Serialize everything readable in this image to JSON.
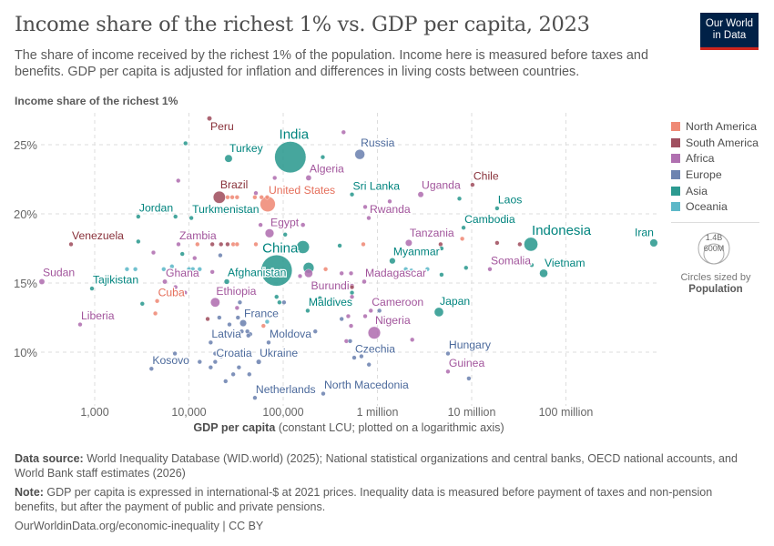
{
  "header": {
    "title": "Income share of the richest 1% vs. GDP per capita, 2023",
    "subtitle": "The share of income received by the richest 1% of the population. Income here is measured before taxes and benefits. GDP per capita is adjusted for inflation and differences in living costs between countries.",
    "logo_line1": "Our World",
    "logo_line2": "in Data"
  },
  "legend": {
    "items": [
      {
        "label": "North America",
        "color": "#EF8A76"
      },
      {
        "label": "South America",
        "color": "#A05060"
      },
      {
        "label": "Africa",
        "color": "#B070B0"
      },
      {
        "label": "Europe",
        "color": "#6D83B0"
      },
      {
        "label": "Asia",
        "color": "#2C9A90"
      },
      {
        "label": "Oceania",
        "color": "#5DB8C8"
      }
    ],
    "size_large": "1.4B",
    "size_small": "600M",
    "size_caption": "Circles sized by",
    "size_variable": "Population"
  },
  "chart_data": {
    "type": "scatter",
    "title": "Income share of the richest 1% vs. GDP per capita, 2023",
    "ylabel": "Income share of the richest 1%",
    "xlabel_bold": "GDP per capita",
    "xlabel_rest": " (constant LCU; plotted on a logarithmic axis)",
    "x_scale": "log",
    "xlim": [
      270,
      900000000
    ],
    "ylim": [
      6,
      27.3
    ],
    "grid": true,
    "legend_position": "right",
    "x_ticks": [
      1000,
      10000,
      100000,
      1000000,
      10000000,
      100000000
    ],
    "x_tick_labels": [
      "1,000",
      "10,000",
      "100,000",
      "1 million",
      "10 million",
      "100 million"
    ],
    "y_ticks": [
      10,
      15,
      20,
      25
    ],
    "y_tick_labels": [
      "10%",
      "15%",
      "20%",
      "25%"
    ],
    "size_variable": "Population",
    "region_colors": {
      "North America": {
        "dot": "#EF8A76",
        "label": "#E56E5A"
      },
      "South America": {
        "dot": "#A05060",
        "label": "#883039"
      },
      "Africa": {
        "dot": "#B070B0",
        "label": "#A2559C"
      },
      "Europe": {
        "dot": "#6D83B0",
        "label": "#4C6A9C"
      },
      "Asia": {
        "dot": "#2C9A90",
        "label": "#00847E"
      },
      "Oceania": {
        "dot": "#5DB8C8",
        "label": "#38AABA"
      }
    },
    "labeled_points": [
      {
        "name": "Peru",
        "x": 16500,
        "y": 26.9,
        "region": "South America",
        "population_m": 34
      },
      {
        "name": "India",
        "x": 119000,
        "y": 24.1,
        "region": "Asia",
        "population_m": 1430
      },
      {
        "name": "Russia",
        "x": 650000,
        "y": 24.3,
        "region": "Europe",
        "population_m": 144
      },
      {
        "name": "Turkey",
        "x": 26300,
        "y": 24.0,
        "region": "Asia",
        "population_m": 85
      },
      {
        "name": "Algeria",
        "x": 186000,
        "y": 22.6,
        "region": "Africa",
        "population_m": 46
      },
      {
        "name": "Brazil",
        "x": 21000,
        "y": 21.2,
        "region": "South America",
        "population_m": 216
      },
      {
        "name": "United States",
        "x": 68500,
        "y": 20.7,
        "region": "North America",
        "population_m": 335
      },
      {
        "name": "Sri Lanka",
        "x": 537000,
        "y": 21.4,
        "region": "Asia",
        "population_m": 22
      },
      {
        "name": "Uganda",
        "x": 2880000,
        "y": 21.4,
        "region": "Africa",
        "population_m": 49
      },
      {
        "name": "Chile",
        "x": 10200000,
        "y": 22.1,
        "region": "South America",
        "population_m": 20
      },
      {
        "name": "Rwanda",
        "x": 809000,
        "y": 19.7,
        "region": "Africa",
        "population_m": 14
      },
      {
        "name": "Laos",
        "x": 18600000,
        "y": 20.4,
        "region": "Asia",
        "population_m": 7.6
      },
      {
        "name": "Jordan",
        "x": 2900,
        "y": 19.8,
        "region": "Asia",
        "population_m": 11
      },
      {
        "name": "Turkmenistan",
        "x": 10600,
        "y": 19.7,
        "region": "Asia",
        "population_m": 6.5
      },
      {
        "name": "Egypt",
        "x": 71600,
        "y": 18.6,
        "region": "Africa",
        "population_m": 113
      },
      {
        "name": "Cambodia",
        "x": 8200000,
        "y": 19.0,
        "region": "Asia",
        "population_m": 17
      },
      {
        "name": "Venezuela",
        "x": 561,
        "y": 17.8,
        "region": "South America",
        "population_m": 28
      },
      {
        "name": "Zambia",
        "x": 7740,
        "y": 17.8,
        "region": "Africa",
        "population_m": 20
      },
      {
        "name": "Tanzania",
        "x": 2150000,
        "y": 17.9,
        "region": "Africa",
        "population_m": 67
      },
      {
        "name": "Indonesia",
        "x": 42500000,
        "y": 17.8,
        "region": "Asia",
        "population_m": 278
      },
      {
        "name": "Iran",
        "x": 855000000,
        "y": 17.9,
        "region": "Asia",
        "population_m": 89
      },
      {
        "name": "China",
        "x": 85100,
        "y": 15.9,
        "region": "Asia",
        "population_m": 1410
      },
      {
        "name": "Myanmar",
        "x": 1440000,
        "y": 16.6,
        "region": "Asia",
        "population_m": 54
      },
      {
        "name": "Somalia",
        "x": 15600000,
        "y": 16.0,
        "region": "Africa",
        "population_m": 18
      },
      {
        "name": "Vietnam",
        "x": 58000000,
        "y": 15.7,
        "region": "Asia",
        "population_m": 99
      },
      {
        "name": "Sudan",
        "x": 275,
        "y": 15.1,
        "region": "Africa",
        "population_m": 48
      },
      {
        "name": "Tajikistan",
        "x": 935,
        "y": 14.6,
        "region": "Asia",
        "population_m": 10
      },
      {
        "name": "Ghana",
        "x": 5550,
        "y": 15.1,
        "region": "Africa",
        "population_m": 34
      },
      {
        "name": "Afghanistan",
        "x": 25200,
        "y": 15.1,
        "region": "Asia",
        "population_m": 42
      },
      {
        "name": "Madagascar",
        "x": 724000,
        "y": 15.1,
        "region": "Africa",
        "population_m": 30
      },
      {
        "name": "Burundi",
        "x": 537000,
        "y": 14.8,
        "region": "Africa",
        "population_m": 13
      },
      {
        "name": "Cuba",
        "x": 4600,
        "y": 13.7,
        "region": "North America",
        "population_m": 11
      },
      {
        "name": "Ethiopia",
        "x": 19000,
        "y": 13.6,
        "region": "Africa",
        "population_m": 127
      },
      {
        "name": "Maldives",
        "x": 182000,
        "y": 13.0,
        "region": "Asia",
        "population_m": 0.5
      },
      {
        "name": "Cameroon",
        "x": 851000,
        "y": 13.0,
        "region": "Africa",
        "population_m": 28
      },
      {
        "name": "Japan",
        "x": 4490000,
        "y": 12.9,
        "region": "Asia",
        "population_m": 124
      },
      {
        "name": "Liberia",
        "x": 700,
        "y": 12.0,
        "region": "Africa",
        "population_m": 5.4
      },
      {
        "name": "France",
        "x": 37600,
        "y": 12.1,
        "region": "Europe",
        "population_m": 68
      },
      {
        "name": "Nigeria",
        "x": 925000,
        "y": 11.4,
        "region": "Africa",
        "population_m": 224
      },
      {
        "name": "Latvia",
        "x": 17000,
        "y": 10.7,
        "region": "Europe",
        "population_m": 1.9
      },
      {
        "name": "Moldova",
        "x": 70000,
        "y": 10.7,
        "region": "Europe",
        "population_m": 2.5
      },
      {
        "name": "Czechia",
        "x": 567000,
        "y": 9.6,
        "region": "Europe",
        "population_m": 11
      },
      {
        "name": "Hungary",
        "x": 5600000,
        "y": 9.9,
        "region": "Europe",
        "population_m": 10
      },
      {
        "name": "Kosovo",
        "x": 4000,
        "y": 8.8,
        "region": "Europe",
        "population_m": 1.8
      },
      {
        "name": "Croatia",
        "x": 19000,
        "y": 9.3,
        "region": "Europe",
        "population_m": 3.9
      },
      {
        "name": "Ukraine",
        "x": 55000,
        "y": 9.3,
        "region": "Europe",
        "population_m": 37
      },
      {
        "name": "Guinea",
        "x": 5600000,
        "y": 8.6,
        "region": "Africa",
        "population_m": 14
      },
      {
        "name": "Netherlands",
        "x": 50100,
        "y": 6.7,
        "region": "Europe",
        "population_m": 18
      },
      {
        "name": "North Macedonia",
        "x": 266000,
        "y": 7.0,
        "region": "Europe",
        "population_m": 1.8
      }
    ],
    "unlabeled_points": [
      [
        9200,
        25.1,
        "Asia",
        3
      ],
      [
        7700,
        22.4,
        "Africa",
        3
      ],
      [
        7200,
        19.8,
        "Asia",
        3
      ],
      [
        2900,
        18.0,
        "Asia",
        3
      ],
      [
        4200,
        17.2,
        "Africa",
        3
      ],
      [
        8500,
        17.1,
        "Asia",
        3
      ],
      [
        11500,
        16.8,
        "Africa",
        3
      ],
      [
        21500,
        17.0,
        "Europe",
        3
      ],
      [
        81300,
        22.6,
        "Africa",
        3
      ],
      [
        263000,
        24.1,
        "Asia",
        3
      ],
      [
        437000,
        25.9,
        "Africa",
        5
      ],
      [
        51300,
        21.5,
        "Africa",
        3
      ],
      [
        57500,
        19.2,
        "Africa",
        3
      ],
      [
        105000,
        18.5,
        "Asia",
        3
      ],
      [
        398000,
        17.7,
        "Asia",
        3
      ],
      [
        708000,
        17.8,
        "North America",
        3
      ],
      [
        162000,
        17.6,
        "Asia",
        240
      ],
      [
        186000,
        16.1,
        "Asia",
        170
      ],
      [
        186000,
        15.7,
        "Africa",
        100
      ],
      [
        162000,
        19.2,
        "Africa",
        30
      ],
      [
        2200,
        16.0,
        "Oceania",
        3
      ],
      [
        2700,
        16.0,
        "Oceania",
        3
      ],
      [
        5400,
        16.0,
        "Oceania",
        3
      ],
      [
        6600,
        16.2,
        "Oceania",
        3
      ],
      [
        10000,
        16.0,
        "Oceania",
        3
      ],
      [
        11000,
        16.0,
        "Oceania",
        3
      ],
      [
        13000,
        16.0,
        "Oceania",
        3
      ],
      [
        17700,
        15.8,
        "Africa",
        3
      ],
      [
        282000,
        16.0,
        "North America",
        3
      ],
      [
        417000,
        15.7,
        "Africa",
        3
      ],
      [
        525000,
        15.7,
        "Africa",
        3
      ],
      [
        151000,
        15.5,
        "Africa",
        3
      ],
      [
        12300,
        17.8,
        "North America",
        3
      ],
      [
        17700,
        17.8,
        "South America",
        3
      ],
      [
        21900,
        17.8,
        "South America",
        3
      ],
      [
        25700,
        17.8,
        "South America",
        3
      ],
      [
        29500,
        17.8,
        "North America",
        3
      ],
      [
        32400,
        17.8,
        "North America",
        3
      ],
      [
        51300,
        17.8,
        "North America",
        3
      ],
      [
        25700,
        21.2,
        "North America",
        3
      ],
      [
        28800,
        21.2,
        "North America",
        3
      ],
      [
        32400,
        21.2,
        "North America",
        3
      ],
      [
        50000,
        21.2,
        "North America",
        3
      ],
      [
        58900,
        21.2,
        "North America",
        3
      ],
      [
        67600,
        21.2,
        "North America",
        3
      ],
      [
        1350000,
        20.9,
        "Africa",
        5
      ],
      [
        741000,
        20.5,
        "Africa",
        3
      ],
      [
        7410000,
        21.1,
        "Asia",
        3
      ],
      [
        4680000,
        17.8,
        "South America",
        3
      ],
      [
        4790000,
        17.5,
        "Asia",
        3
      ],
      [
        7940000,
        18.2,
        "North America",
        3
      ],
      [
        18600000,
        17.9,
        "South America",
        8
      ],
      [
        32400000,
        17.8,
        "South America",
        3
      ],
      [
        2000000,
        16.0,
        "Oceania",
        3
      ],
      [
        2290000,
        15.9,
        "Oceania",
        3
      ],
      [
        3390000,
        16.0,
        "Oceania",
        3
      ],
      [
        4790000,
        15.6,
        "Asia",
        6
      ],
      [
        8710000,
        16.1,
        "Asia",
        3
      ],
      [
        43400000,
        16.3,
        "Asia",
        6
      ],
      [
        3200,
        13.5,
        "Asia",
        3
      ],
      [
        4400,
        12.8,
        "North America",
        3
      ],
      [
        7200,
        14.7,
        "Africa",
        3
      ],
      [
        9100,
        14.3,
        "Africa",
        3
      ],
      [
        15800,
        12.4,
        "South America",
        11
      ],
      [
        21000,
        12.5,
        "Europe",
        3
      ],
      [
        26900,
        12.0,
        "Europe",
        15
      ],
      [
        34700,
        13.6,
        "Europe",
        20
      ],
      [
        32400,
        13.2,
        "Africa",
        6
      ],
      [
        33100,
        12.5,
        "Europe",
        18
      ],
      [
        61700,
        11.9,
        "North America",
        8
      ],
      [
        67600,
        12.2,
        "Oceania",
        3
      ],
      [
        85100,
        14.0,
        "Asia",
        4
      ],
      [
        91200,
        13.6,
        "Asia",
        3
      ],
      [
        102000,
        13.6,
        "Europe",
        3
      ],
      [
        36300,
        11.5,
        "Europe",
        3
      ],
      [
        41700,
        11.5,
        "Europe",
        3
      ],
      [
        44700,
        11.3,
        "Europe",
        3
      ],
      [
        42700,
        11.2,
        "Europe",
        3
      ],
      [
        7100,
        9.9,
        "Europe",
        3
      ],
      [
        13000,
        9.3,
        "Europe",
        3
      ],
      [
        17000,
        8.9,
        "Europe",
        3
      ],
      [
        19000,
        9.9,
        "Europe",
        3
      ],
      [
        21900,
        9.7,
        "Europe",
        3
      ],
      [
        29500,
        8.4,
        "Europe",
        3
      ],
      [
        43700,
        8.4,
        "Europe",
        3
      ],
      [
        24500,
        7.9,
        "Europe",
        3
      ],
      [
        33900,
        8.9,
        "Europe",
        3
      ],
      [
        245000,
        13.9,
        "Asia",
        3
      ],
      [
        219000,
        11.5,
        "Europe",
        3
      ],
      [
        417000,
        12.4,
        "Europe",
        3
      ],
      [
        490000,
        12.6,
        "Africa",
        3
      ],
      [
        525000,
        11.9,
        "Africa",
        4
      ],
      [
        468000,
        10.8,
        "Africa",
        3
      ],
      [
        513000,
        10.8,
        "Europe",
        3
      ],
      [
        537000,
        14.7,
        "South America",
        3
      ],
      [
        537000,
        14.3,
        "Asia",
        3
      ],
      [
        537000,
        14.0,
        "Africa",
        3
      ],
      [
        741000,
        12.6,
        "Africa",
        3
      ],
      [
        1050000,
        13.0,
        "Europe",
        3
      ],
      [
        676000,
        9.7,
        "Europe",
        3
      ],
      [
        813000,
        9.1,
        "Europe",
        3
      ],
      [
        2340000,
        10.9,
        "Africa",
        3
      ],
      [
        9330000,
        8.1,
        "Europe",
        3
      ]
    ]
  },
  "footer": {
    "source_label": "Data source:",
    "source_text": " World Inequality Database (WID.world) (2025); National statistical organizations and central banks, OECD national accounts, and World Bank staff estimates (2026)",
    "note_label": "Note:",
    "note_text": " GDP per capita is expressed in international-$ at 2021 prices. Inequality data is measured before payment of taxes and non-pension benefits, but after the payment of public and private pensions.",
    "url": "OurWorldinData.org/economic-inequality | CC BY"
  }
}
